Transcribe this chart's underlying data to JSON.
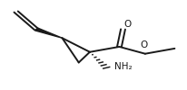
{
  "bg_color": "#ffffff",
  "line_color": "#1a1a1a",
  "text_color": "#1a1a1a",
  "line_width": 1.4,
  "figsize": [
    2.06,
    1.0
  ],
  "dpi": 100,
  "font_size": 7.5,
  "NH2_label": "NH₂",
  "O_label": "O"
}
